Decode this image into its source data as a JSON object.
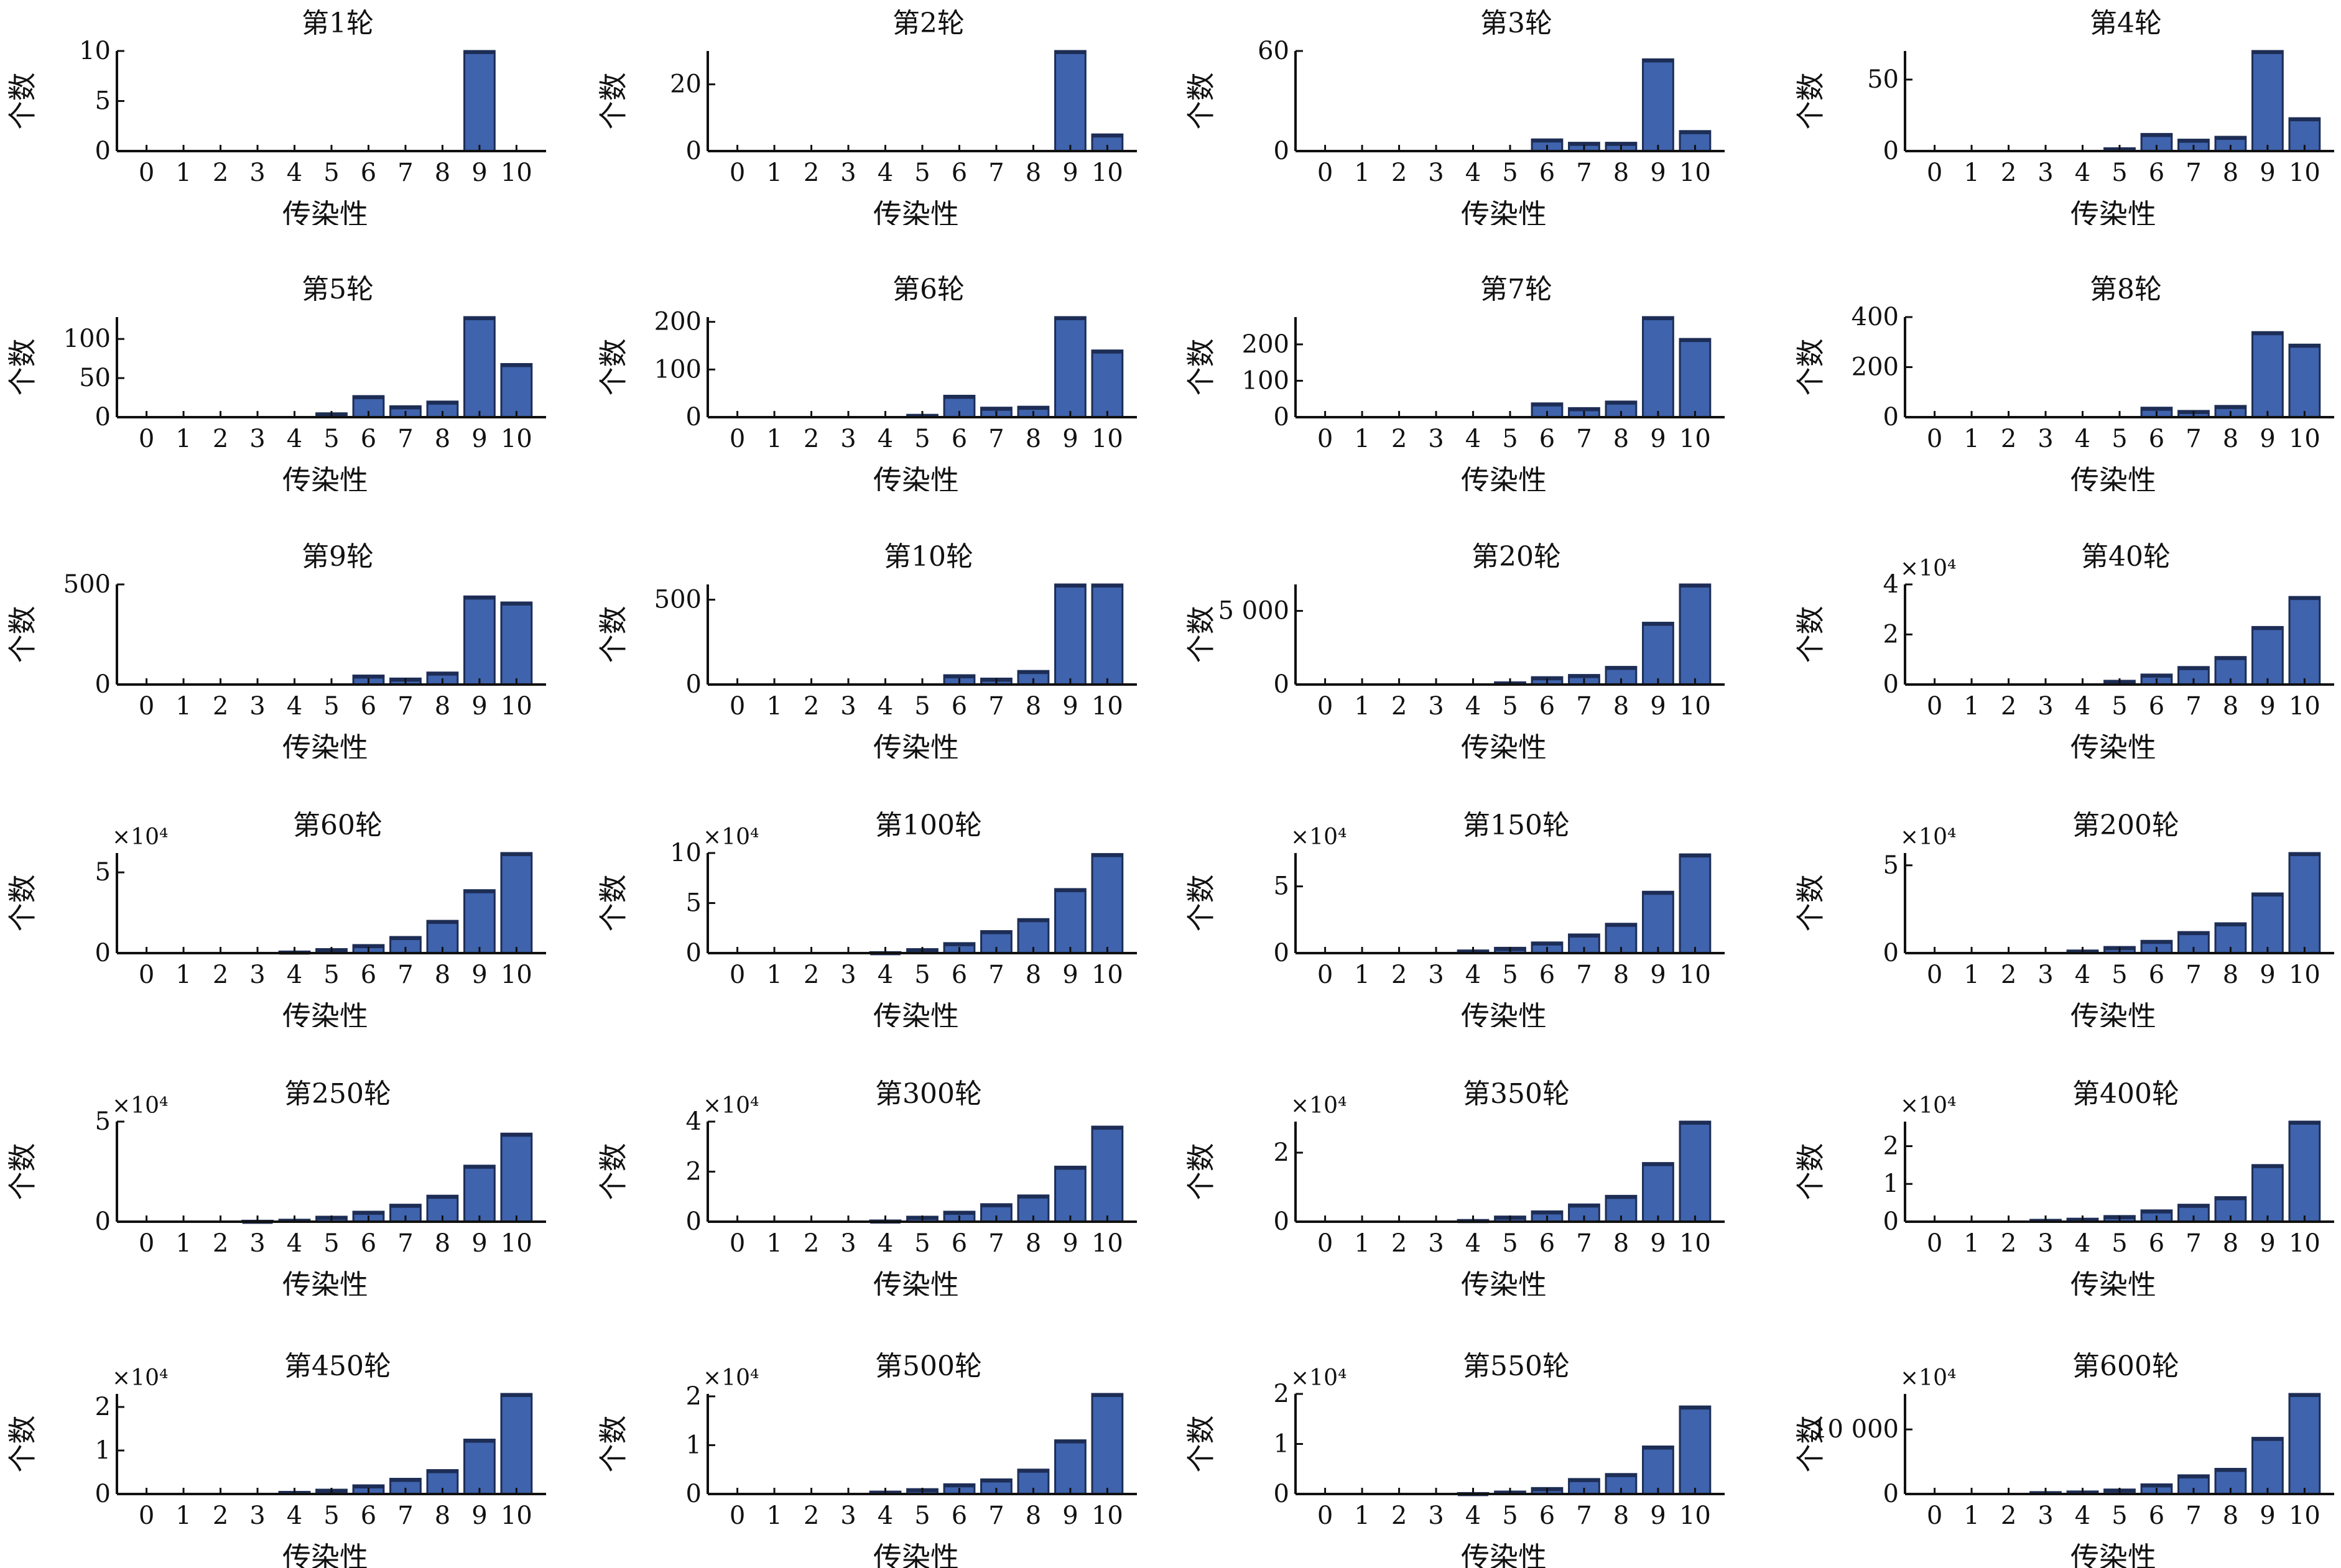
{
  "layout": {
    "columns": 4,
    "rows": 6
  },
  "colors": {
    "bar_fill": "#3f63ad",
    "bar_edge": "#1d2d55",
    "axis": "#111111",
    "text": "#111111"
  },
  "chart_data": [
    {
      "type": "bar",
      "title": "第1轮",
      "xlabel": "传染性",
      "ylabel": "个数",
      "scale_label": "",
      "categories": [
        "0",
        "1",
        "2",
        "3",
        "4",
        "5",
        "6",
        "7",
        "8",
        "9",
        "10"
      ],
      "values": [
        0,
        0,
        0,
        0,
        0,
        0,
        0,
        0,
        0,
        10,
        0
      ],
      "ylim": [
        0,
        10
      ],
      "yticks": [
        0,
        5,
        10
      ],
      "ytick_labels": [
        "0",
        "5",
        "10"
      ]
    },
    {
      "type": "bar",
      "title": "第2轮",
      "xlabel": "传染性",
      "ylabel": "个数",
      "scale_label": "",
      "categories": [
        "0",
        "1",
        "2",
        "3",
        "4",
        "5",
        "6",
        "7",
        "8",
        "9",
        "10"
      ],
      "values": [
        0,
        0,
        0,
        0,
        0,
        0,
        0,
        0,
        0,
        30,
        5
      ],
      "ylim": [
        0,
        30
      ],
      "yticks": [
        0,
        20
      ],
      "ytick_labels": [
        "0",
        "20"
      ]
    },
    {
      "type": "bar",
      "title": "第3轮",
      "xlabel": "传染性",
      "ylabel": "个数",
      "scale_label": "",
      "categories": [
        "0",
        "1",
        "2",
        "3",
        "4",
        "5",
        "6",
        "7",
        "8",
        "9",
        "10"
      ],
      "values": [
        0,
        0,
        0,
        0,
        0,
        0,
        7,
        5,
        5,
        55,
        12
      ],
      "ylim": [
        0,
        60
      ],
      "yticks": [
        0,
        60
      ],
      "ytick_labels": [
        "0",
        "60"
      ]
    },
    {
      "type": "bar",
      "title": "第4轮",
      "xlabel": "传染性",
      "ylabel": "个数",
      "scale_label": "",
      "categories": [
        "0",
        "1",
        "2",
        "3",
        "4",
        "5",
        "6",
        "7",
        "8",
        "9",
        "10"
      ],
      "values": [
        0,
        0,
        0,
        0,
        0,
        2,
        12,
        8,
        10,
        70,
        23
      ],
      "ylim": [
        0,
        70
      ],
      "yticks": [
        0,
        50
      ],
      "ytick_labels": [
        "0",
        "50"
      ]
    },
    {
      "type": "bar",
      "title": "第5轮",
      "xlabel": "传染性",
      "ylabel": "个数",
      "scale_label": "",
      "categories": [
        "0",
        "1",
        "2",
        "3",
        "4",
        "5",
        "6",
        "7",
        "8",
        "9",
        "10"
      ],
      "values": [
        0,
        0,
        0,
        0,
        0,
        5,
        27,
        14,
        20,
        128,
        68
      ],
      "ylim": [
        0,
        128
      ],
      "yticks": [
        0,
        50,
        100
      ],
      "ytick_labels": [
        "0",
        "50",
        "100"
      ]
    },
    {
      "type": "bar",
      "title": "第6轮",
      "xlabel": "传染性",
      "ylabel": "个数",
      "scale_label": "",
      "categories": [
        "0",
        "1",
        "2",
        "3",
        "4",
        "5",
        "6",
        "7",
        "8",
        "9",
        "10"
      ],
      "values": [
        0,
        0,
        0,
        0,
        0,
        5,
        45,
        20,
        22,
        210,
        140
      ],
      "ylim": [
        0,
        210
      ],
      "yticks": [
        0,
        100,
        200
      ],
      "ytick_labels": [
        "0",
        "100",
        "200"
      ]
    },
    {
      "type": "bar",
      "title": "第7轮",
      "xlabel": "传染性",
      "ylabel": "个数",
      "scale_label": "",
      "categories": [
        "0",
        "1",
        "2",
        "3",
        "4",
        "5",
        "6",
        "7",
        "8",
        "9",
        "10"
      ],
      "values": [
        0,
        0,
        0,
        0,
        0,
        0,
        38,
        25,
        43,
        275,
        215
      ],
      "ylim": [
        0,
        275
      ],
      "yticks": [
        0,
        100,
        200
      ],
      "ytick_labels": [
        "0",
        "100",
        "200"
      ]
    },
    {
      "type": "bar",
      "title": "第8轮",
      "xlabel": "传染性",
      "ylabel": "个数",
      "scale_label": "",
      "categories": [
        "0",
        "1",
        "2",
        "3",
        "4",
        "5",
        "6",
        "7",
        "8",
        "9",
        "10"
      ],
      "values": [
        0,
        0,
        0,
        0,
        0,
        0,
        38,
        25,
        45,
        340,
        290
      ],
      "ylim": [
        0,
        400
      ],
      "yticks": [
        0,
        200,
        400
      ],
      "ytick_labels": [
        "0",
        "200",
        "400"
      ]
    },
    {
      "type": "bar",
      "title": "第9轮",
      "xlabel": "传染性",
      "ylabel": "个数",
      "scale_label": "",
      "categories": [
        "0",
        "1",
        "2",
        "3",
        "4",
        "5",
        "6",
        "7",
        "8",
        "9",
        "10"
      ],
      "values": [
        0,
        0,
        0,
        0,
        0,
        0,
        45,
        30,
        60,
        440,
        410
      ],
      "ylim": [
        0,
        500
      ],
      "yticks": [
        0,
        500
      ],
      "ytick_labels": [
        "0",
        "500"
      ]
    },
    {
      "type": "bar",
      "title": "第10轮",
      "xlabel": "传染性",
      "ylabel": "个数",
      "scale_label": "",
      "categories": [
        "0",
        "1",
        "2",
        "3",
        "4",
        "5",
        "6",
        "7",
        "8",
        "9",
        "10"
      ],
      "values": [
        0,
        0,
        0,
        0,
        0,
        0,
        55,
        35,
        80,
        590,
        590
      ],
      "ylim": [
        0,
        590
      ],
      "yticks": [
        0,
        500
      ],
      "ytick_labels": [
        "0",
        "500"
      ]
    },
    {
      "type": "bar",
      "title": "第20轮",
      "xlabel": "传染性",
      "ylabel": "个数",
      "scale_label": "",
      "categories": [
        "0",
        "1",
        "2",
        "3",
        "4",
        "5",
        "6",
        "7",
        "8",
        "9",
        "10"
      ],
      "values": [
        0,
        0,
        0,
        0,
        0,
        150,
        500,
        650,
        1200,
        4200,
        6800
      ],
      "ylim": [
        0,
        6800
      ],
      "yticks": [
        0,
        5000
      ],
      "ytick_labels": [
        "0",
        "5 000"
      ]
    },
    {
      "type": "bar",
      "title": "第40轮",
      "xlabel": "传染性",
      "ylabel": "个数",
      "scale_label": "×10⁴",
      "categories": [
        "0",
        "1",
        "2",
        "3",
        "4",
        "5",
        "6",
        "7",
        "8",
        "9",
        "10"
      ],
      "values": [
        0,
        0,
        0,
        0,
        0,
        0.15,
        0.4,
        0.7,
        1.1,
        2.3,
        3.5
      ],
      "ylim": [
        0,
        4
      ],
      "yticks": [
        0,
        2,
        4
      ],
      "ytick_labels": [
        "0",
        "2",
        "4"
      ]
    },
    {
      "type": "bar",
      "title": "第60轮",
      "xlabel": "传染性",
      "ylabel": "个数",
      "scale_label": "×10⁴",
      "categories": [
        "0",
        "1",
        "2",
        "3",
        "4",
        "5",
        "6",
        "7",
        "8",
        "9",
        "10"
      ],
      "values": [
        0,
        0,
        0,
        0,
        0.1,
        0.25,
        0.5,
        1.0,
        2.0,
        3.9,
        6.2
      ],
      "ylim": [
        0,
        6.2
      ],
      "yticks": [
        0,
        5
      ],
      "ytick_labels": [
        "0",
        "5"
      ]
    },
    {
      "type": "bar",
      "title": "第100轮",
      "xlabel": "传染性",
      "ylabel": "个数",
      "scale_label": "×10⁴",
      "categories": [
        "0",
        "1",
        "2",
        "3",
        "4",
        "5",
        "6",
        "7",
        "8",
        "9",
        "10"
      ],
      "values": [
        0,
        0,
        0,
        0,
        0.1,
        0.4,
        1.0,
        2.2,
        3.4,
        6.4,
        9.9
      ],
      "ylim": [
        0,
        10
      ],
      "yticks": [
        0,
        5,
        10
      ],
      "ytick_labels": [
        "0",
        "5",
        "10"
      ]
    },
    {
      "type": "bar",
      "title": "第150轮",
      "xlabel": "传染性",
      "ylabel": "个数",
      "scale_label": "×10⁴",
      "categories": [
        "0",
        "1",
        "2",
        "3",
        "4",
        "5",
        "6",
        "7",
        "8",
        "9",
        "10"
      ],
      "values": [
        0,
        0,
        0,
        0,
        0.2,
        0.4,
        0.8,
        1.4,
        2.2,
        4.6,
        7.4
      ],
      "ylim": [
        0,
        7.5
      ],
      "yticks": [
        0,
        5
      ],
      "ytick_labels": [
        "0",
        "5"
      ]
    },
    {
      "type": "bar",
      "title": "第200轮",
      "xlabel": "传染性",
      "ylabel": "个数",
      "scale_label": "×10⁴",
      "categories": [
        "0",
        "1",
        "2",
        "3",
        "4",
        "5",
        "6",
        "7",
        "8",
        "9",
        "10"
      ],
      "values": [
        0,
        0,
        0,
        0,
        0.15,
        0.35,
        0.7,
        1.2,
        1.7,
        3.4,
        5.7
      ],
      "ylim": [
        0,
        5.7
      ],
      "yticks": [
        0,
        5
      ],
      "ytick_labels": [
        "0",
        "5"
      ]
    },
    {
      "type": "bar",
      "title": "第250轮",
      "xlabel": "传染性",
      "ylabel": "个数",
      "scale_label": "×10⁴",
      "categories": [
        "0",
        "1",
        "2",
        "3",
        "4",
        "5",
        "6",
        "7",
        "8",
        "9",
        "10"
      ],
      "values": [
        0,
        0,
        0,
        0.05,
        0.1,
        0.25,
        0.5,
        0.85,
        1.3,
        2.8,
        4.4
      ],
      "ylim": [
        0,
        5
      ],
      "yticks": [
        0,
        5
      ],
      "ytick_labels": [
        "0",
        "5"
      ]
    },
    {
      "type": "bar",
      "title": "第300轮",
      "xlabel": "传染性",
      "ylabel": "个数",
      "scale_label": "×10⁴",
      "categories": [
        "0",
        "1",
        "2",
        "3",
        "4",
        "5",
        "6",
        "7",
        "8",
        "9",
        "10"
      ],
      "values": [
        0,
        0,
        0,
        0,
        0.05,
        0.2,
        0.4,
        0.7,
        1.05,
        2.2,
        3.8
      ],
      "ylim": [
        0,
        4
      ],
      "yticks": [
        0,
        2,
        4
      ],
      "ytick_labels": [
        "0",
        "2",
        "4"
      ]
    },
    {
      "type": "bar",
      "title": "第350轮",
      "xlabel": "传染性",
      "ylabel": "个数",
      "scale_label": "×10⁴",
      "categories": [
        "0",
        "1",
        "2",
        "3",
        "4",
        "5",
        "6",
        "7",
        "8",
        "9",
        "10"
      ],
      "values": [
        0,
        0,
        0,
        0,
        0.05,
        0.15,
        0.3,
        0.5,
        0.75,
        1.7,
        2.9
      ],
      "ylim": [
        0,
        2.9
      ],
      "yticks": [
        0,
        2
      ],
      "ytick_labels": [
        "0",
        "2"
      ]
    },
    {
      "type": "bar",
      "title": "第400轮",
      "xlabel": "传染性",
      "ylabel": "个数",
      "scale_label": "×10⁴",
      "categories": [
        "0",
        "1",
        "2",
        "3",
        "4",
        "5",
        "6",
        "7",
        "8",
        "9",
        "10"
      ],
      "values": [
        0,
        0,
        0,
        0.05,
        0.08,
        0.15,
        0.3,
        0.45,
        0.65,
        1.5,
        2.65
      ],
      "ylim": [
        0,
        2.65
      ],
      "yticks": [
        0,
        1,
        2
      ],
      "ytick_labels": [
        "0",
        "1",
        "2"
      ]
    },
    {
      "type": "bar",
      "title": "第450轮",
      "xlabel": "传染性",
      "ylabel": "个数",
      "scale_label": "×10⁴",
      "categories": [
        "0",
        "1",
        "2",
        "3",
        "4",
        "5",
        "6",
        "7",
        "8",
        "9",
        "10"
      ],
      "values": [
        0,
        0,
        0,
        0,
        0.05,
        0.1,
        0.2,
        0.35,
        0.55,
        1.25,
        2.3
      ],
      "ylim": [
        0,
        2.3
      ],
      "yticks": [
        0,
        1,
        2
      ],
      "ytick_labels": [
        "0",
        "1",
        "2"
      ]
    },
    {
      "type": "bar",
      "title": "第500轮",
      "xlabel": "传染性",
      "ylabel": "个数",
      "scale_label": "×10⁴",
      "categories": [
        "0",
        "1",
        "2",
        "3",
        "4",
        "5",
        "6",
        "7",
        "8",
        "9",
        "10"
      ],
      "values": [
        0,
        0,
        0,
        0,
        0.05,
        0.1,
        0.2,
        0.3,
        0.5,
        1.1,
        2.05
      ],
      "ylim": [
        0,
        2.05
      ],
      "yticks": [
        0,
        1,
        2
      ],
      "ytick_labels": [
        "0",
        "1",
        "2"
      ]
    },
    {
      "type": "bar",
      "title": "第550轮",
      "xlabel": "传染性",
      "ylabel": "个数",
      "scale_label": "×10⁴",
      "categories": [
        "0",
        "1",
        "2",
        "3",
        "4",
        "5",
        "6",
        "7",
        "8",
        "9",
        "10"
      ],
      "values": [
        0,
        0,
        0,
        0,
        0.02,
        0.05,
        0.12,
        0.3,
        0.4,
        0.95,
        1.75
      ],
      "ylim": [
        0,
        2
      ],
      "yticks": [
        0,
        1,
        2
      ],
      "ytick_labels": [
        "0",
        "1",
        "2"
      ]
    },
    {
      "type": "bar",
      "title": "第600轮",
      "xlabel": "传染性",
      "ylabel": "个数",
      "scale_label": "×10⁴",
      "categories": [
        "0",
        "1",
        "2",
        "3",
        "4",
        "5",
        "6",
        "7",
        "8",
        "9",
        "10"
      ],
      "values": [
        0,
        0,
        0,
        300,
        400,
        700,
        1500,
        2900,
        3900,
        8700,
        15500
      ],
      "ylim": [
        0,
        15500
      ],
      "yticks": [
        0,
        10000
      ],
      "ytick_labels": [
        "0",
        "10 000"
      ]
    }
  ]
}
